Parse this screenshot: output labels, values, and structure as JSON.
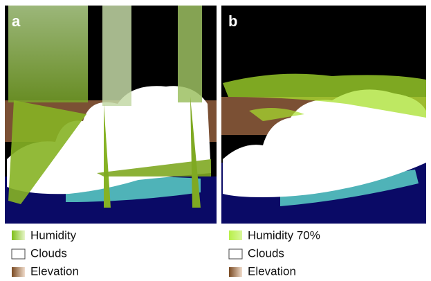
{
  "panels": [
    {
      "label": "a",
      "legend": [
        "Humidity",
        "Clouds",
        "Elevation"
      ]
    },
    {
      "label": "b",
      "legend": [
        "Humidity 70%",
        "Clouds",
        "Elevation"
      ]
    }
  ]
}
